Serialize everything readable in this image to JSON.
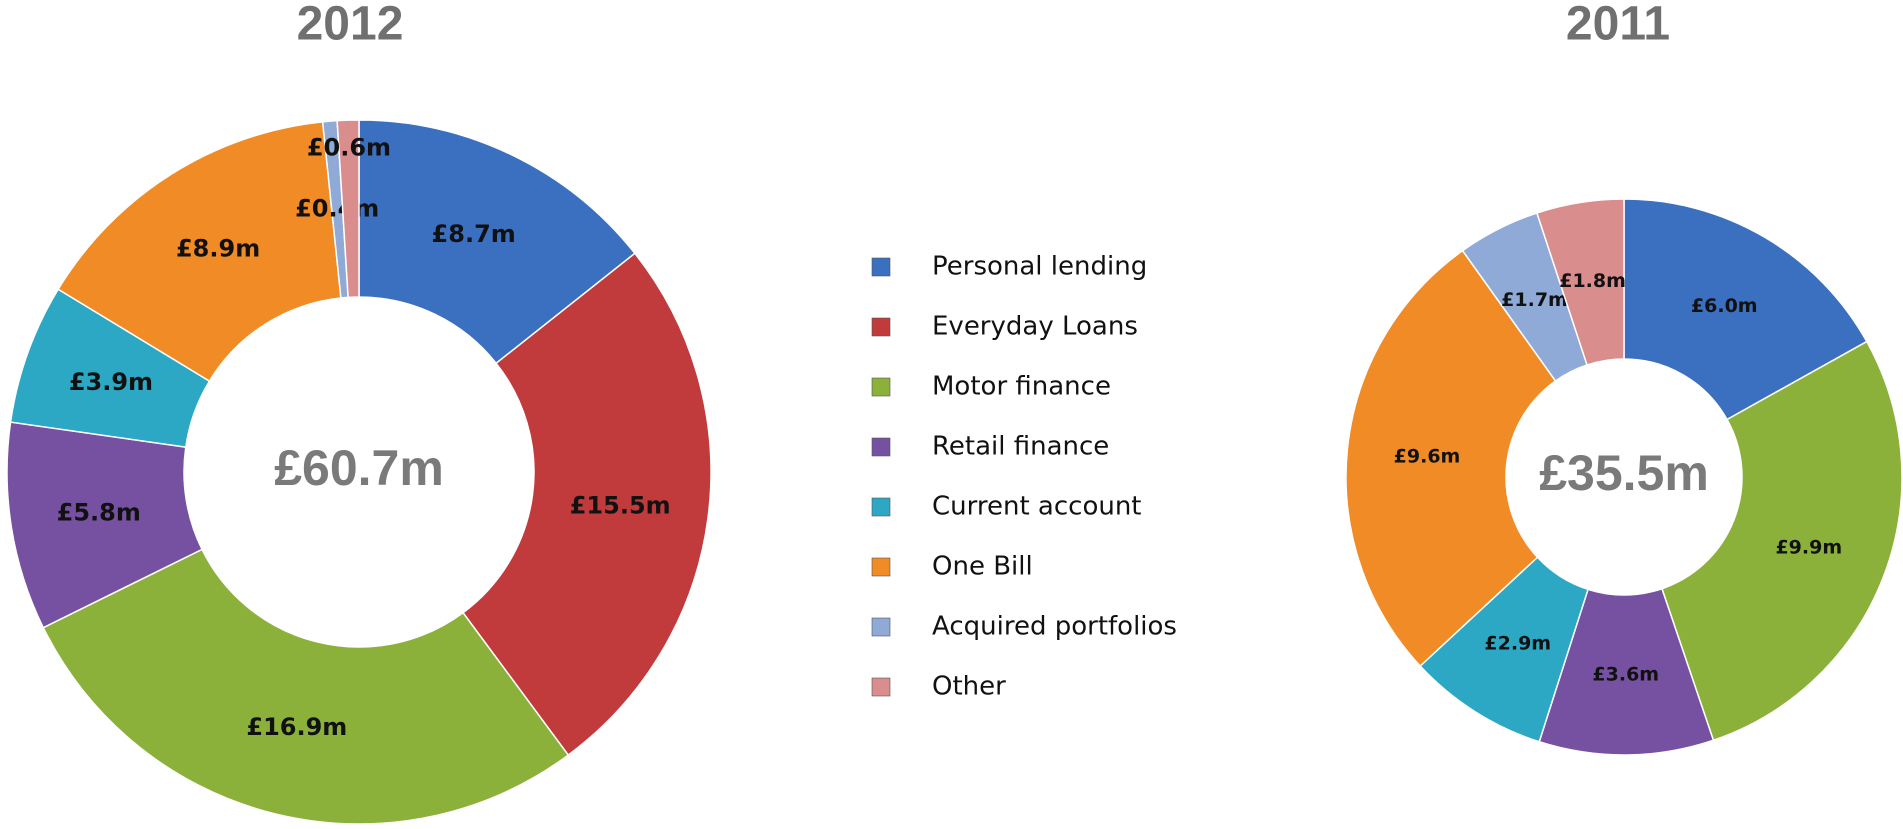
{
  "chart_data": [
    {
      "type": "donut",
      "title": "2012",
      "total_label": "£60.7m",
      "categories": [
        "Personal lending",
        "Everyday Loans",
        "Motor finance",
        "Retail finance",
        "Current account",
        "One Bill",
        "Acquired portfolios",
        "Other"
      ],
      "colors": [
        "#3b6fc0",
        "#c13a3c",
        "#8bb13b",
        "#7651a1",
        "#2ca7c4",
        "#f08b26",
        "#90aad7",
        "#d98d8c"
      ],
      "values": [
        8.7,
        15.5,
        16.9,
        5.8,
        3.9,
        8.9,
        0.4,
        0.6
      ],
      "value_labels": [
        "£8.7m",
        "£15.5m",
        "£16.9m",
        "£5.8m",
        "£3.9m",
        "£8.9m",
        "£0.4m",
        "£0.6m"
      ]
    },
    {
      "type": "donut",
      "title": "2011",
      "total_label": "£35.5m",
      "values": [
        6.0,
        null,
        9.9,
        3.6,
        2.9,
        9.6,
        1.7,
        1.8
      ],
      "value_labels": [
        "£6.0m",
        null,
        "£9.9m",
        "£3.6m",
        "£2.9m",
        "£9.6m",
        "£1.7m",
        "£1.8m"
      ]
    }
  ]
}
